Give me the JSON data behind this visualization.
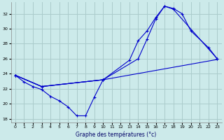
{
  "xlabel": "Graphe des températures (°c)",
  "background_color": "#cceaea",
  "grid_color": "#aacccc",
  "line_color": "#0000cc",
  "xlim": [
    -0.5,
    23.5
  ],
  "ylim": [
    17.5,
    33.5
  ],
  "xticks": [
    0,
    1,
    2,
    3,
    4,
    5,
    6,
    7,
    8,
    9,
    10,
    11,
    12,
    13,
    14,
    15,
    16,
    17,
    18,
    19,
    20,
    21,
    22,
    23
  ],
  "yticks": [
    18,
    20,
    22,
    24,
    26,
    28,
    30,
    32
  ],
  "series": [
    {
      "x": [
        0,
        1,
        2,
        3,
        4,
        5,
        6,
        7,
        8,
        9,
        10
      ],
      "y": [
        23.8,
        22.9,
        22.3,
        21.9,
        21.0,
        20.4,
        19.6,
        18.4,
        18.4,
        20.9,
        23.2
      ],
      "marker": true
    },
    {
      "x": [
        0,
        3,
        10,
        23
      ],
      "y": [
        23.8,
        22.3,
        23.2,
        25.9
      ],
      "marker": false
    },
    {
      "x": [
        0,
        3,
        10,
        13,
        14,
        15,
        16,
        17,
        18,
        23
      ],
      "y": [
        23.8,
        22.3,
        23.2,
        25.8,
        28.4,
        29.7,
        31.5,
        33.0,
        32.6,
        26.0
      ],
      "marker": true
    },
    {
      "x": [
        0,
        3,
        10,
        14,
        15,
        16,
        17,
        18,
        19,
        20,
        22,
        23
      ],
      "y": [
        23.8,
        22.3,
        23.2,
        26.0,
        28.6,
        31.3,
        33.0,
        32.7,
        32.0,
        29.7,
        27.5,
        26.0
      ],
      "marker": true
    }
  ]
}
